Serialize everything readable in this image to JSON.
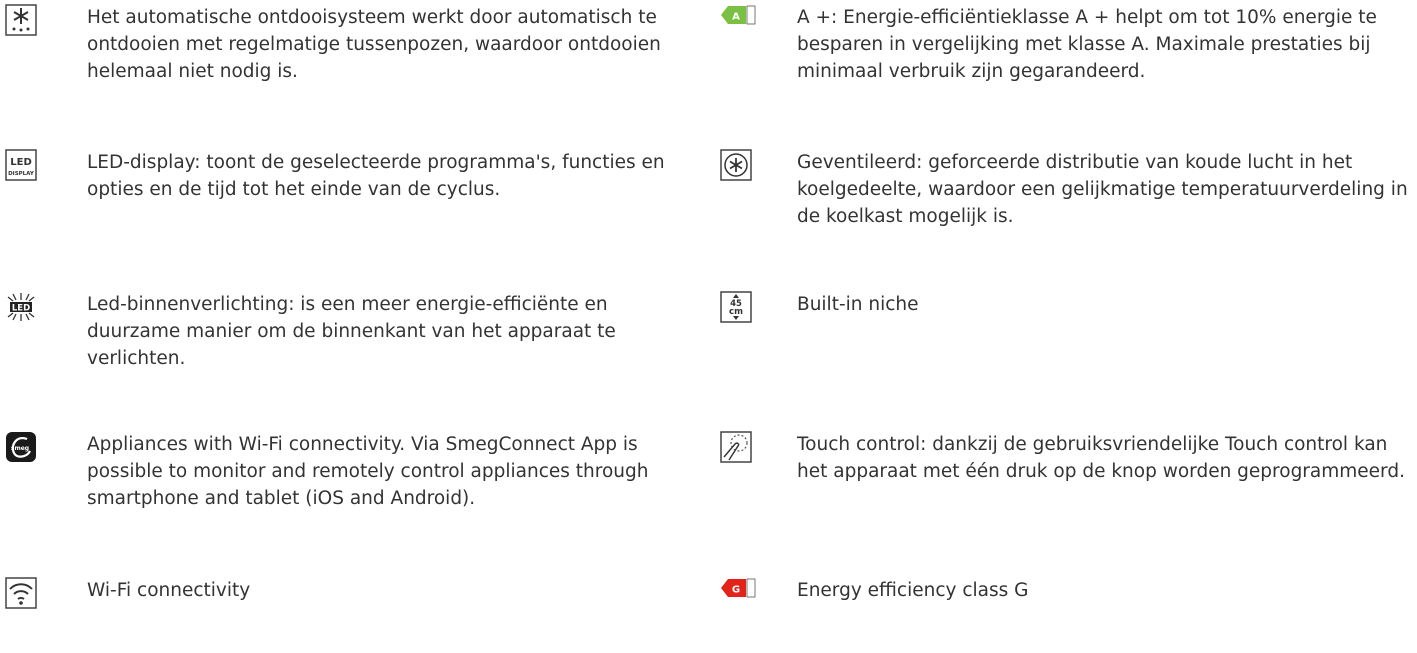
{
  "columns": [
    [
      {
        "text": "Het automatische ontdooisysteem werkt door automatisch te ontdooien met regelmatige tussenpozen, waardoor ontdooien helemaal niet nodig is."
      },
      {
        "text": "LED-display: toont de geselecteerde programma's, functies en opties en de tijd tot het einde van de cyclus.",
        "icon_text": [
          "LED",
          "DISPLAY"
        ]
      },
      {
        "text": "Led-binnenverlichting: is een meer energie-efficiënte en duurzame manier om de binnenkant van het apparaat te verlichten.",
        "icon_text": [
          "LED"
        ]
      },
      {
        "text": "Appliances with Wi-Fi connectivity. Via SmegConnect App is possible to monitor and remotely control appliances through smartphone and tablet (iOS and Android).",
        "icon_text": [
          "smeg"
        ]
      },
      {
        "text": "Wi-Fi connectivity"
      }
    ],
    [
      {
        "text": "A +: Energie-efficiëntieklasse A + helpt om tot 10% energie te besparen in vergelijking met klasse A. Maximale prestaties bij minimaal verbruik zijn gegarandeerd.",
        "icon_text": [
          "A"
        ]
      },
      {
        "text": "Geventileerd: geforceerde distributie van koude lucht in het koelgedeelte, waardoor een gelijkmatige temperatuurverdeling in de koelkast mogelijk is."
      },
      {
        "text": "Built-in niche",
        "icon_text": [
          "45",
          "cm"
        ]
      },
      {
        "text": "Touch control: dankzij de gebruiksvriendelijke Touch control kan het apparaat met één druk op de knop worden geprogrammeerd."
      },
      {
        "text": "Energy efficiency class G",
        "icon_text": [
          "G"
        ]
      }
    ]
  ]
}
